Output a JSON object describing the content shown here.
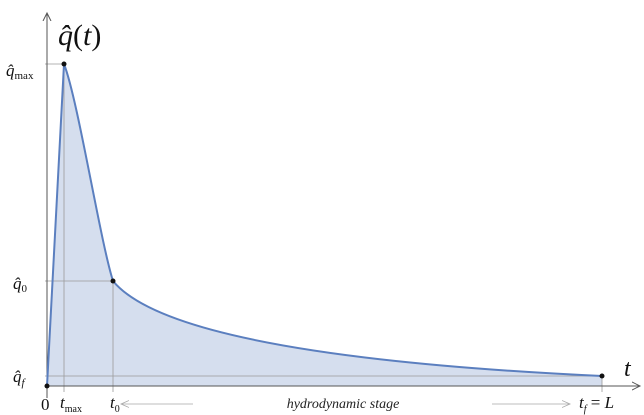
{
  "diagram": {
    "title": "q̂(t)",
    "x_axis_label": "t",
    "stage_label": "hydrodynamic stage",
    "y_labels": {
      "q_max": "q̂max",
      "q_0": "q̂0",
      "q_f": "q̂f"
    },
    "x_labels": {
      "origin": "0",
      "t_max": "tmax",
      "t_0": "t0",
      "t_f": "tf = L"
    },
    "colors": {
      "curve": "#5b7fbf",
      "fill": "#d5deee",
      "axis": "#555555",
      "guide": "#9a9a9a"
    }
  }
}
